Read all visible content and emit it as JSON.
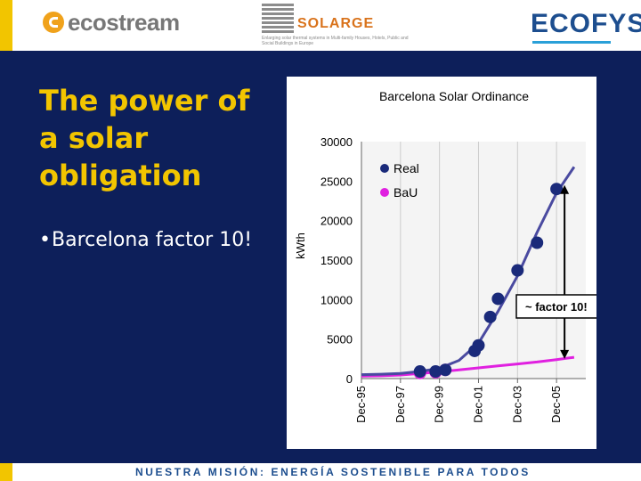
{
  "header": {
    "logo_ecostream": "ecostream",
    "logo_solarge": "SOLARGE",
    "solarge_tagline": "Enlarging solar thermal systems in Multi-family Houses, Hotels, Public and Social Buildings in Europe",
    "logo_ecofys": "ECOFYS"
  },
  "slide": {
    "title": "The power of a solar obligation",
    "bullet_symbol": "•",
    "bullet": "Barcelona factor 10!"
  },
  "footer": {
    "text": "NUESTRA MISIÓN:  ENERGÍA SOSTENIBLE PARA TODOS"
  },
  "colors": {
    "background": "#0d1f5a",
    "title": "#f2c500",
    "real_series": "#1a2a7a",
    "bau_series": "#e020e0",
    "fit_line": "#4a4aa0"
  },
  "chart_data": {
    "type": "scatter",
    "title": "Barcelona Solar Ordinance",
    "ylabel": "kWth",
    "xlabel": "",
    "ylim": [
      0,
      30000
    ],
    "yticks": [
      0,
      5000,
      10000,
      15000,
      20000,
      25000,
      30000
    ],
    "xlim": [
      1995,
      2006.5
    ],
    "xticks": [
      {
        "x": 1995,
        "label": "Dec-95"
      },
      {
        "x": 1997,
        "label": "Dec-97"
      },
      {
        "x": 1999,
        "label": "Dec-99"
      },
      {
        "x": 2001,
        "label": "Dec-01"
      },
      {
        "x": 2003,
        "label": "Dec-03"
      },
      {
        "x": 2005,
        "label": "Dec-05"
      }
    ],
    "grid": "vertical",
    "legend": "top-left",
    "series": [
      {
        "name": "Real",
        "x": [
          1998.0,
          1998.8,
          1999.3,
          2000.8,
          2001.0,
          2001.6,
          2002.0,
          2003.0,
          2004.0,
          2005.0
        ],
        "y": [
          900,
          900,
          1100,
          3500,
          4200,
          7800,
          10100,
          13700,
          17200,
          24000
        ]
      },
      {
        "name": "BaU",
        "x": [
          1998.0,
          1998.8,
          1999.3
        ],
        "y": [
          700,
          800,
          1100
        ]
      }
    ],
    "trend_real": {
      "x": [
        1995,
        1996,
        1997,
        1998,
        1999,
        2000,
        2001,
        2002,
        2003,
        2004,
        2005,
        2005.9
      ],
      "y": [
        500,
        550,
        650,
        900,
        1300,
        2300,
        4500,
        8500,
        13000,
        18500,
        23500,
        26800
      ]
    },
    "trend_bau": {
      "x": [
        1995,
        1996,
        1997,
        1998,
        1999,
        2000,
        2001,
        2002,
        2003,
        2004,
        2005,
        2005.9
      ],
      "y": [
        300,
        350,
        450,
        650,
        850,
        1100,
        1350,
        1600,
        1850,
        2100,
        2400,
        2700
      ]
    },
    "annotation": {
      "label": "~ factor 10!",
      "x": 2005,
      "y_from": 2500,
      "y_to": 24500
    }
  }
}
